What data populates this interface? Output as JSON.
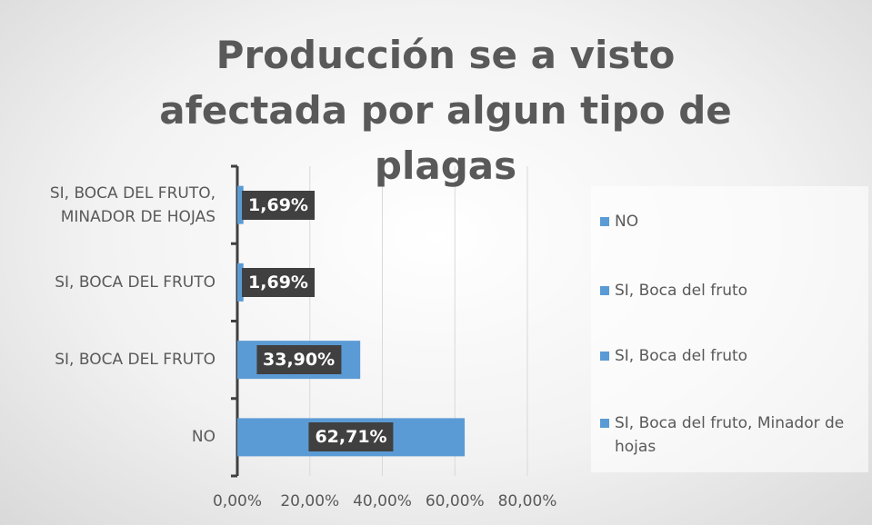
{
  "chart_data": {
    "type": "hbar",
    "title": "Producción se a visto afectada por algun tipo de plagas",
    "categories": [
      "NO",
      "SI, BOCA DEL FRUTO",
      "SI, BOCA DEL FRUTO",
      "SI, BOCA DEL FRUTO, MINADOR DE HOJAS"
    ],
    "values": [
      62.71,
      33.9,
      1.69,
      1.69
    ],
    "value_labels": [
      "62,71%",
      "33,90%",
      "1,69%",
      "1,69%"
    ],
    "color": "#5b9bd5",
    "xlim": [
      0,
      80
    ],
    "xticks": [
      {
        "value": 0,
        "label": "0,00%"
      },
      {
        "value": 20,
        "label": "20,00%"
      },
      {
        "value": 40,
        "label": "40,00%"
      },
      {
        "value": 60,
        "label": "60,00%"
      },
      {
        "value": 80,
        "label": "80,00%"
      }
    ],
    "grid": true,
    "legend": [
      "NO",
      "SI, Boca del fruto",
      "SI, Boca del fruto",
      "SI, Boca del fruto, Minador de hojas"
    ],
    "legend_position": "right"
  }
}
